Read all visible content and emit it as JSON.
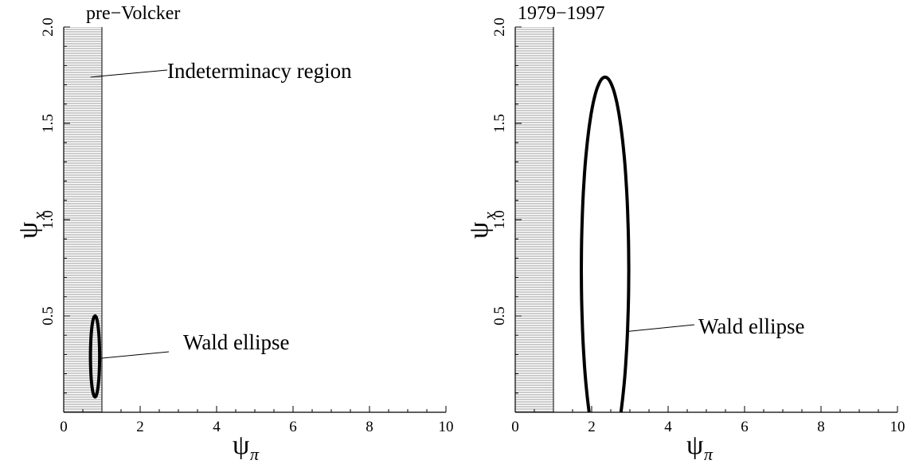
{
  "figure": {
    "xlabel": "ψ",
    "xlabel_sub": "π",
    "ylabel": "ψ",
    "ylabel_sub": "x"
  },
  "chart_data": [
    {
      "type": "scatter",
      "title": "pre−Volcker",
      "xlabel": "ψπ",
      "ylabel": "ψx",
      "xlim": [
        0,
        10
      ],
      "ylim": [
        0,
        2.0
      ],
      "xticks": [
        "0",
        "2",
        "4",
        "6",
        "8",
        "10"
      ],
      "yticks": [
        "0.5",
        "1.0",
        "1.5",
        "2.0"
      ],
      "grid": false,
      "regions": [
        {
          "name": "Indeterminacy region",
          "x": [
            0,
            1
          ],
          "y": [
            0,
            2.0
          ],
          "pattern": "gray horizontal hatching"
        }
      ],
      "ellipse": {
        "name": "Wald ellipse",
        "center": [
          0.82,
          0.29
        ],
        "semi_x": 0.12,
        "semi_y": 0.21
      },
      "annotations": [
        {
          "text": "Indeterminacy region",
          "points_to": [
            0.7,
            1.74
          ]
        },
        {
          "text": "Wald ellipse",
          "points_to": [
            0.95,
            0.28
          ]
        }
      ]
    },
    {
      "type": "scatter",
      "title": "1979−1997",
      "xlabel": "ψπ",
      "ylabel": "ψx",
      "xlim": [
        0,
        10
      ],
      "ylim": [
        0,
        2.0
      ],
      "xticks": [
        "0",
        "2",
        "4",
        "6",
        "8",
        "10"
      ],
      "yticks": [
        "0.5",
        "1.0",
        "1.5",
        "2.0"
      ],
      "grid": false,
      "regions": [
        {
          "name": "Indeterminacy region",
          "x": [
            0,
            1
          ],
          "y": [
            0,
            2.0
          ],
          "pattern": "gray horizontal hatching"
        }
      ],
      "ellipse": {
        "name": "Wald ellipse",
        "center": [
          2.35,
          0.74
        ],
        "semi_x": 0.62,
        "semi_y": 1.0
      },
      "annotations": [
        {
          "text": "Wald ellipse",
          "points_to": [
            2.95,
            0.42
          ]
        }
      ]
    }
  ]
}
